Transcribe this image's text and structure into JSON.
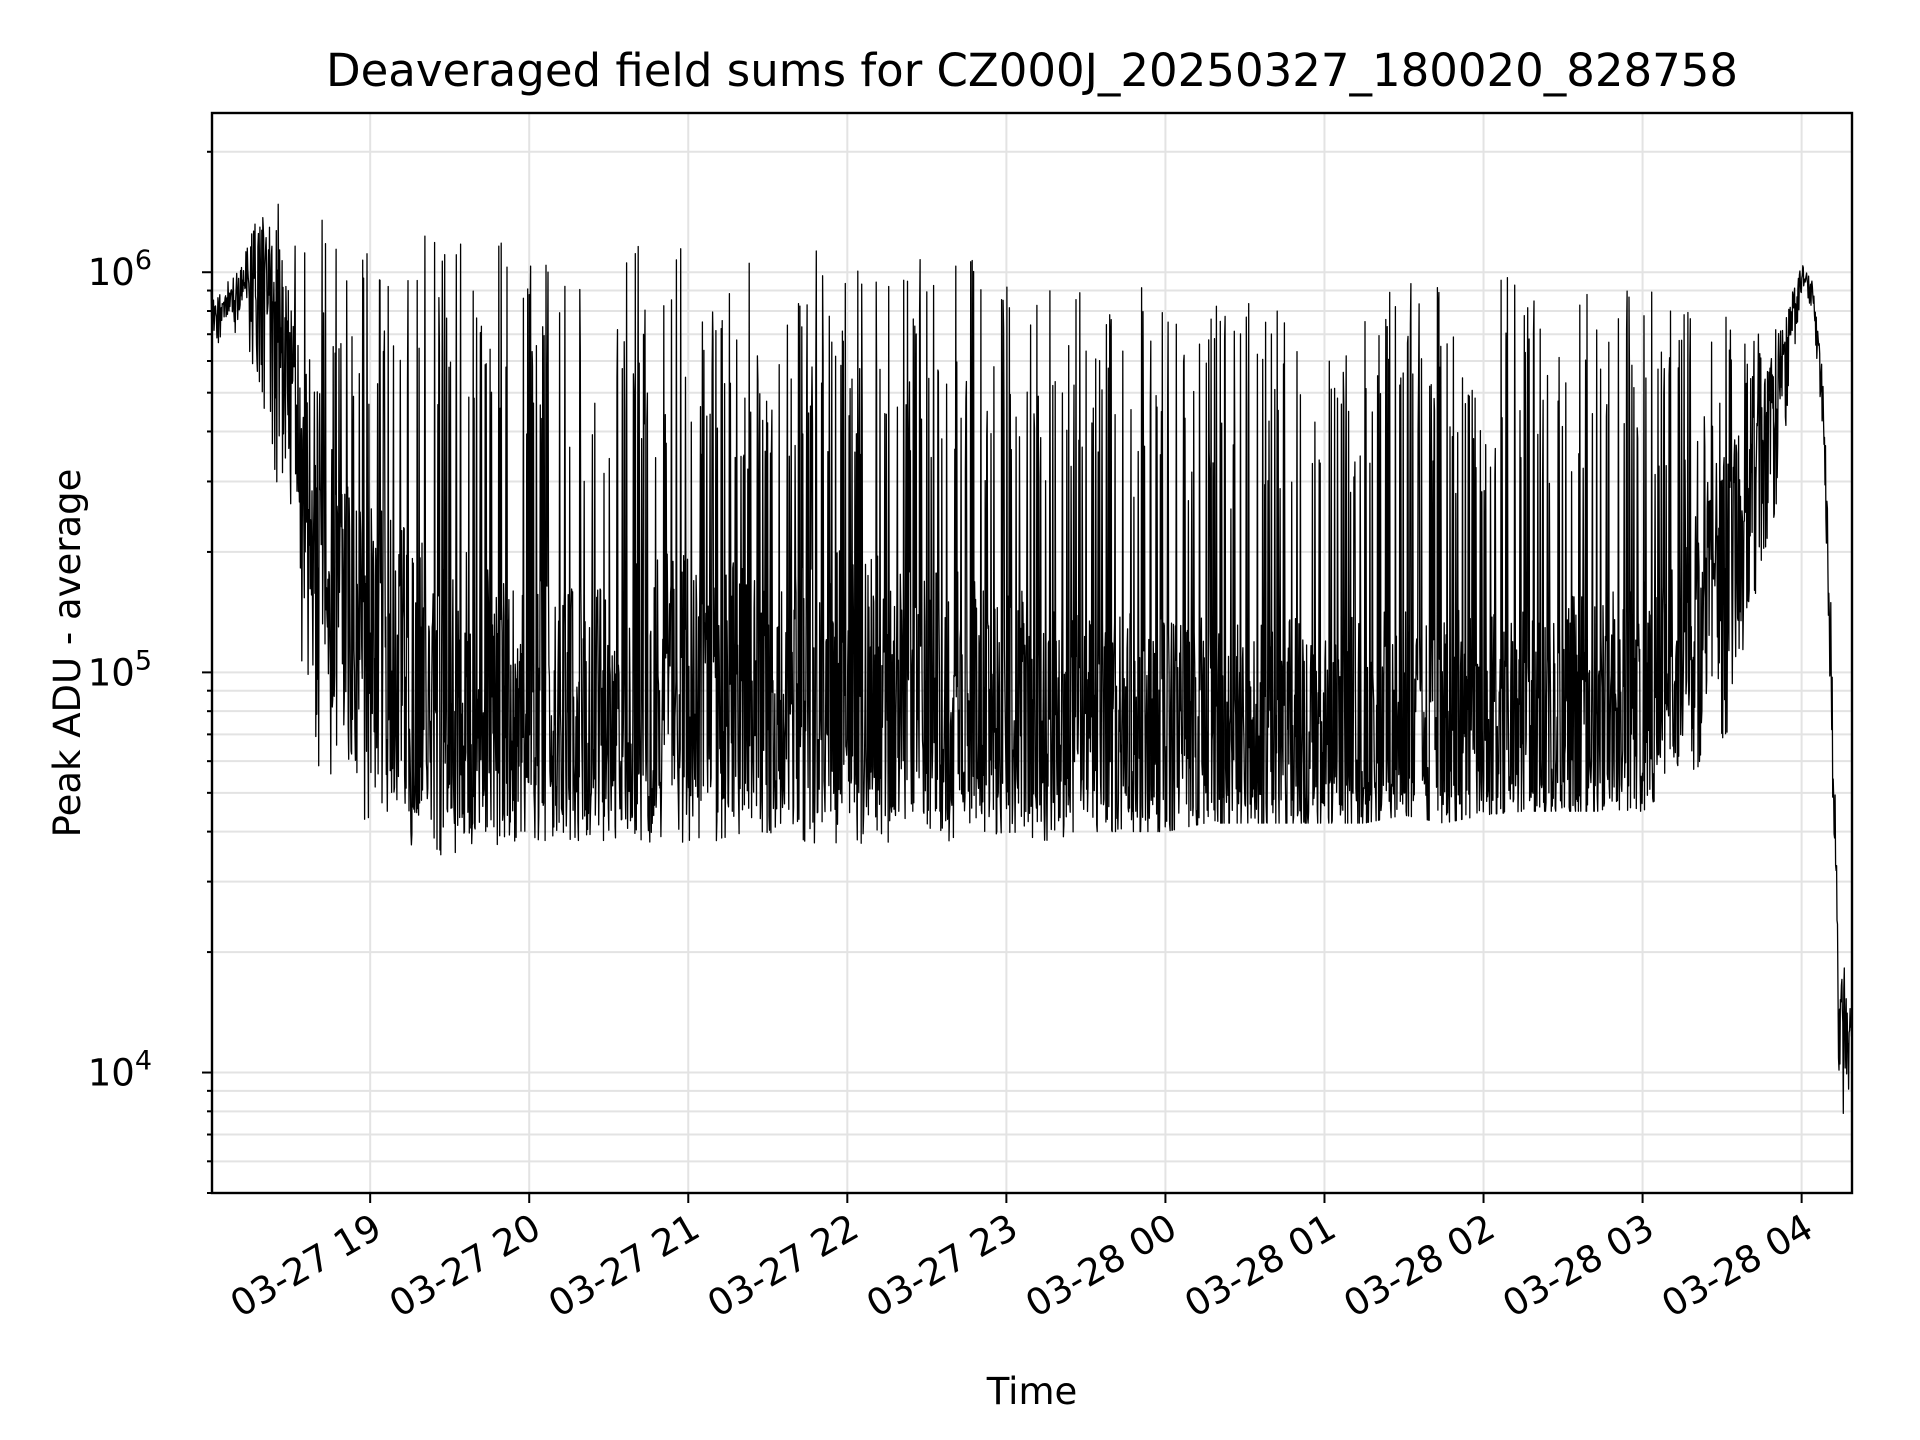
{
  "chart_data": {
    "type": "line",
    "title": "Deaveraged field sums for CZ000J_20250327_180020_828758",
    "xlabel": "Time",
    "ylabel": "Peak ADU - average",
    "yscale": "log",
    "xlim": [
      "2025-03-27 18:00:20",
      "2025-03-28 04:19"
    ],
    "ylim": [
      5000,
      2500000
    ],
    "grid": true,
    "legend": "none",
    "line_color": "#000000",
    "x_tick_labels": [
      "03-27 19",
      "03-27 20",
      "03-27 21",
      "03-27 22",
      "03-27 23",
      "03-28 00",
      "03-28 01",
      "03-28 02",
      "03-28 03",
      "03-28 04"
    ],
    "x_ticks": [
      "2025-03-27 19:00",
      "2025-03-27 20:00",
      "2025-03-27 21:00",
      "2025-03-27 22:00",
      "2025-03-27 23:00",
      "2025-03-28 00:00",
      "2025-03-28 01:00",
      "2025-03-28 02:00",
      "2025-03-28 03:00",
      "2025-03-28 04:00"
    ],
    "y_tick_labels": [
      {
        "base": "10",
        "exp": "4",
        "value": 10000
      },
      {
        "base": "10",
        "exp": "5",
        "value": 100000
      },
      {
        "base": "10",
        "exp": "6",
        "value": 1000000
      }
    ],
    "series": [
      {
        "x": [
          "2025-03-27 18:00",
          "2025-03-27 18:08",
          "2025-03-27 18:15",
          "2025-03-27 18:23",
          "2025-03-27 18:30",
          "2025-03-27 18:38",
          "2025-03-27 18:45",
          "2025-03-27 18:53",
          "2025-03-27 19:00",
          "2025-03-27 19:08",
          "2025-03-27 19:15",
          "2025-03-27 19:23",
          "2025-03-27 19:30",
          "2025-03-27 19:38",
          "2025-03-27 19:45",
          "2025-03-27 19:53",
          "2025-03-27 20:00",
          "2025-03-27 20:15",
          "2025-03-27 20:30",
          "2025-03-27 20:45",
          "2025-03-27 21:00",
          "2025-03-27 21:15",
          "2025-03-27 21:30",
          "2025-03-27 21:45",
          "2025-03-27 22:00",
          "2025-03-27 22:15",
          "2025-03-27 22:30",
          "2025-03-27 22:45",
          "2025-03-27 23:00",
          "2025-03-27 23:15",
          "2025-03-27 23:30",
          "2025-03-27 23:45",
          "2025-03-28 00:00",
          "2025-03-28 00:15",
          "2025-03-28 00:30",
          "2025-03-28 00:45",
          "2025-03-28 01:00",
          "2025-03-28 01:15",
          "2025-03-28 01:30",
          "2025-03-28 01:45",
          "2025-03-28 02:00",
          "2025-03-28 02:15",
          "2025-03-28 02:30",
          "2025-03-28 02:45",
          "2025-03-28 03:00",
          "2025-03-28 03:10",
          "2025-03-28 03:20",
          "2025-03-28 03:30",
          "2025-03-28 03:40",
          "2025-03-28 03:50",
          "2025-03-28 03:55",
          "2025-03-28 04:00",
          "2025-03-28 04:04",
          "2025-03-28 04:08",
          "2025-03-28 04:11",
          "2025-03-28 04:14",
          "2025-03-28 04:17",
          "2025-03-28 04:19"
        ],
        "base": [
          750000,
          850000,
          1000000,
          1100000,
          600000,
          300000,
          180000,
          130000,
          120000,
          110000,
          100000,
          95000,
          90000,
          90000,
          85000,
          85000,
          80000,
          75000,
          80000,
          90000,
          95000,
          90000,
          85000,
          90000,
          95000,
          92000,
          88000,
          85000,
          80000,
          75000,
          72000,
          70000,
          70000,
          70000,
          68000,
          68000,
          68000,
          70000,
          72000,
          70000,
          72000,
          75000,
          78000,
          80000,
          85000,
          100000,
          140000,
          200000,
          300000,
          500000,
          700000,
          1000000,
          900000,
          500000,
          100000,
          15000,
          12000,
          15000
        ],
        "low": [
          650000,
          700000,
          600000,
          300000,
          200000,
          60000,
          50000,
          45000,
          40000,
          38000,
          36000,
          35000,
          35000,
          36000,
          37000,
          37000,
          38000,
          38000,
          38000,
          36000,
          36000,
          38000,
          36000,
          36000,
          38000,
          36000,
          36000,
          38000,
          40000,
          38000,
          40000,
          40000,
          40000,
          42000,
          42000,
          42000,
          42000,
          42000,
          44000,
          42000,
          44000,
          45000,
          45000,
          45000,
          45000,
          50000,
          55000,
          60000,
          130000,
          250000,
          450000,
          900000,
          800000,
          400000,
          80000,
          9000,
          7000,
          12000
        ],
        "high": [
          900000,
          1000000,
          1300000,
          1500000,
          1600000,
          1500000,
          1400000,
          1350000,
          1300000,
          1350000,
          1400000,
          1300000,
          1250000,
          1300000,
          1250000,
          1250000,
          1200000,
          1150000,
          1150000,
          1200000,
          1200000,
          1150000,
          1100000,
          1150000,
          1200000,
          1100000,
          1150000,
          1100000,
          1050000,
          1000000,
          950000,
          950000,
          950000,
          950000,
          950000,
          950000,
          950000,
          950000,
          950000,
          1000000,
          1000000,
          950000,
          950000,
          950000,
          950000,
          900000,
          850000,
          800000,
          750000,
          750000,
          850000,
          1050000,
          950000,
          600000,
          150000,
          20000,
          18000,
          18000
        ]
      }
    ]
  }
}
